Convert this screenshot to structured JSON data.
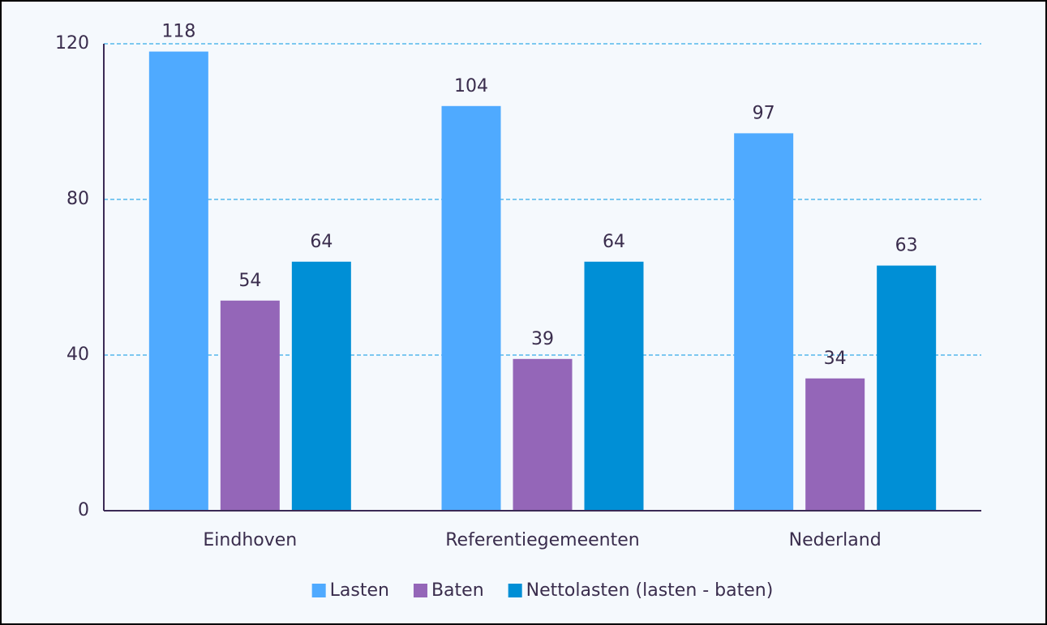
{
  "chart_data": {
    "type": "bar",
    "categories": [
      "Eindhoven",
      "Referentiegemeenten",
      "Nederland"
    ],
    "series": [
      {
        "name": "Lasten",
        "color": "#4faaff",
        "values": [
          118,
          104,
          97
        ]
      },
      {
        "name": "Baten",
        "color": "#9466b8",
        "values": [
          54,
          39,
          34
        ]
      },
      {
        "name": "Nettolasten (lasten - baten)",
        "color": "#008fd6",
        "values": [
          64,
          64,
          63
        ]
      }
    ],
    "ylim": [
      0,
      120
    ],
    "yticks": [
      0,
      40,
      80,
      120
    ],
    "grid": true,
    "legend": "bottom"
  }
}
